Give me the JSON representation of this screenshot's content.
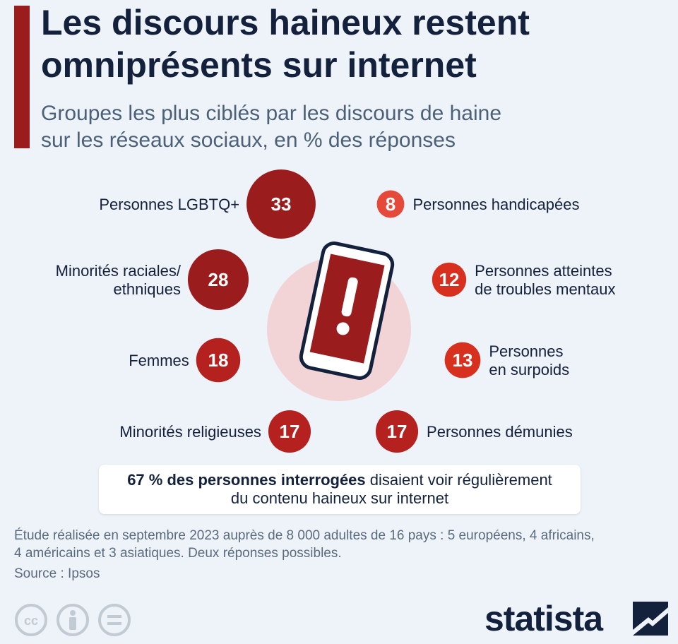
{
  "title_lines": [
    "Les discours haineux restent",
    "omniprésents sur internet"
  ],
  "subtitle_lines": [
    "Groupes les plus ciblés par les discours de haine",
    "sur les réseaux sociaux, en % des réponses"
  ],
  "chart_data": {
    "type": "bubble",
    "unit": "%",
    "categories": [
      "Personnes LGBTQ+",
      "Minorités raciales/ ethniques",
      "Femmes",
      "Minorités religieuses",
      "Personnes handicapées",
      "Personnes atteintes de troubles mentaux",
      "Personnes en surpoids",
      "Personnes démunies"
    ],
    "values": [
      33,
      28,
      18,
      17,
      8,
      12,
      13,
      17
    ],
    "label_lines": [
      [
        "Personnes LGBTQ+"
      ],
      [
        "Minorités raciales/",
        "ethniques"
      ],
      [
        "Femmes"
      ],
      [
        "Minorités religieuses"
      ],
      [
        "Personnes handicapées"
      ],
      [
        "Personnes atteintes",
        "de troubles mentaux"
      ],
      [
        "Personnes",
        "en surpoids"
      ],
      [
        "Personnes démunies"
      ]
    ],
    "colors": {
      "dark": "#9b1c1c",
      "mid": "#b5211f",
      "bright": "#d7301f",
      "light": "#e4493a",
      "center_circle": "#f2d4d6"
    },
    "center_icon": "phone-alert-icon"
  },
  "summary": {
    "bold": "67 % des personnes interrogées",
    "rest_line1": " disaient voir régulièrement",
    "line2": "du contenu haineux sur internet"
  },
  "footnote_lines": [
    "Étude réalisée en septembre 2023 auprès de 8 000 adultes de 16 pays : 5 européens, 4 africains,",
    "4 américains et 3 asiatiques. Deux réponses possibles."
  ],
  "source": "Source : Ipsos",
  "license_icons": [
    "cc-icon",
    "person-icon",
    "equals-icon"
  ],
  "brand": "statista"
}
